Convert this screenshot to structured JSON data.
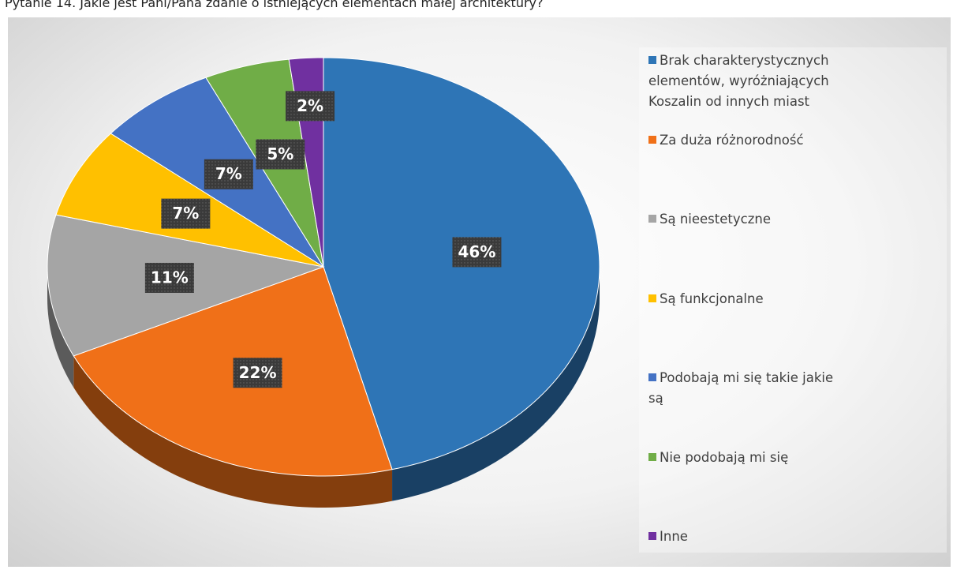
{
  "chart_data": {
    "type": "pie",
    "title": "Pytanie 14. Jakie jest Pani/Pana zdanie o istniejących elementach małej architektury?",
    "categories": [
      "Brak charakterystycznych elementów, wyróżniających Koszalin od innych miast",
      "Za duża różnorodność",
      "Są nieestetyczne",
      "Są funkcjonalne",
      "Podobają mi się takie jakie są",
      "Nie podobają mi się",
      "Inne"
    ],
    "values": [
      46,
      22,
      11,
      7,
      7,
      5,
      2
    ],
    "value_labels": [
      "46%",
      "22%",
      "11%",
      "7%",
      "7%",
      "5%",
      "2%"
    ],
    "colors": [
      "#2e75b6",
      "#f07018",
      "#a5a5a5",
      "#ffc000",
      "#4472c4",
      "#70ad47",
      "#7030a0"
    ],
    "legend": "right"
  }
}
